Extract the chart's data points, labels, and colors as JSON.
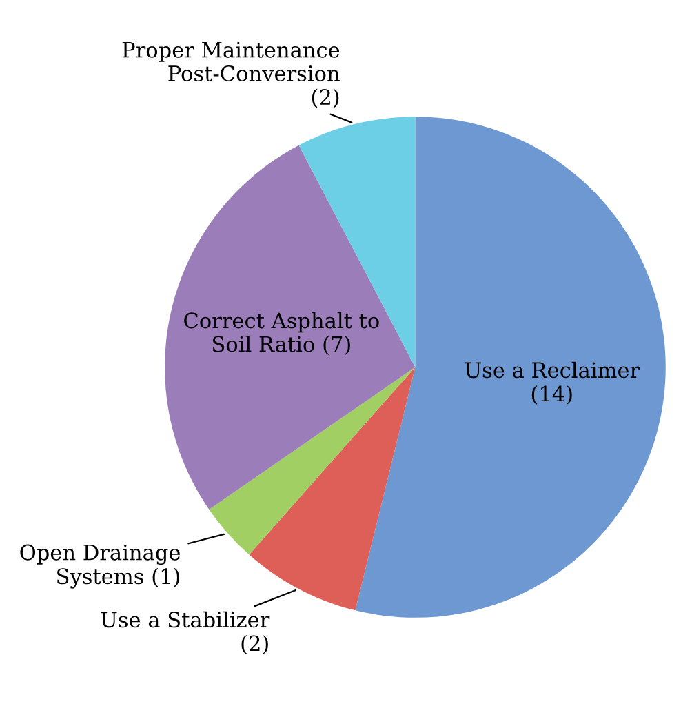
{
  "chart_data": {
    "type": "pie",
    "categories": [
      "Use a Reclaimer",
      "Use a Stabilizer",
      "Open Drainage Systems",
      "Correct Asphalt to Soil Ratio",
      "Proper Maintenance Post-Conversion"
    ],
    "values": [
      14,
      2,
      1,
      7,
      2
    ],
    "value_labels": [
      "(14)",
      "(2)",
      "(1)",
      "(7)",
      "(2)"
    ],
    "colors": [
      "#6d98d2",
      "#de5f58",
      "#a2cf63",
      "#9b7dba",
      "#6ccfe6"
    ]
  }
}
